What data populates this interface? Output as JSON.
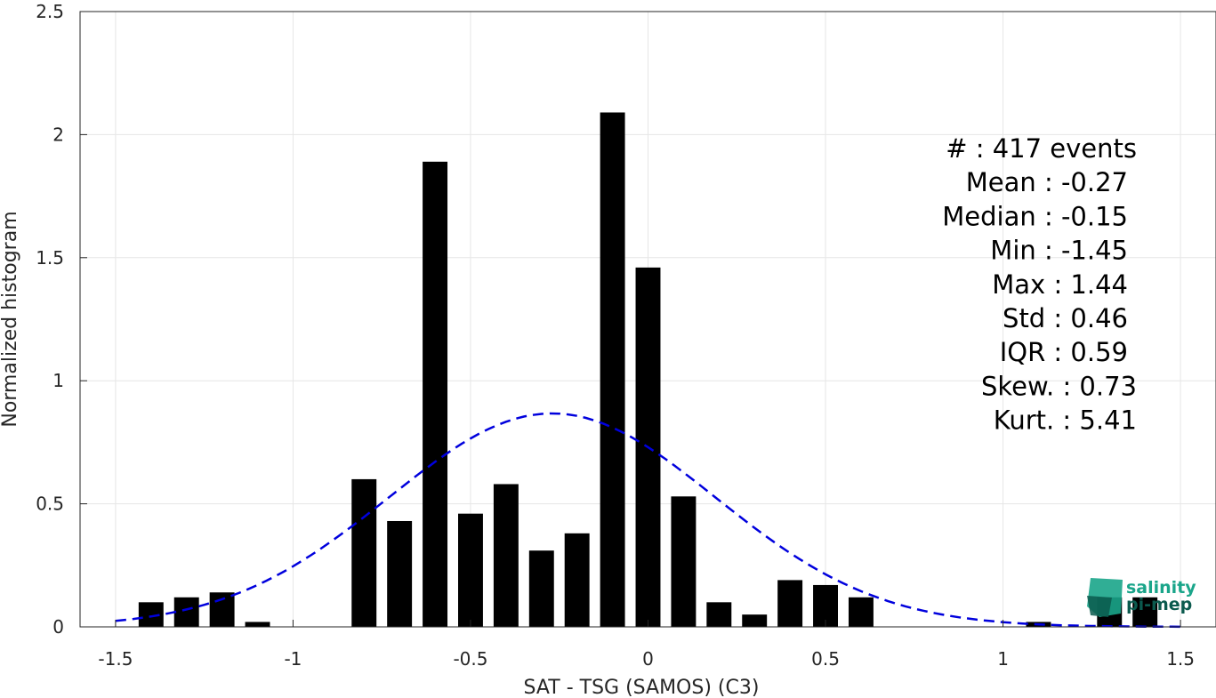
{
  "chart_data": {
    "type": "bar",
    "title": "",
    "xlabel": "SAT - TSG (SAMOS) (C3)",
    "ylabel": "Normalized histogram",
    "xlim": [
      -1.6,
      1.6
    ],
    "ylim": [
      0,
      2.5
    ],
    "grid": true,
    "xticks": [
      -1.5,
      -1,
      -0.5,
      0,
      0.5,
      1,
      1.5
    ],
    "xtick_labels": [
      "-1.5",
      "-1",
      "-0.5",
      "0",
      "0.5",
      "1",
      "1.5"
    ],
    "yticks": [
      0,
      0.5,
      1,
      1.5,
      2,
      2.5
    ],
    "ytick_labels": [
      "0",
      "0.5",
      "1",
      "1.5",
      "2",
      "2.5"
    ],
    "bar_width": 0.07,
    "bars": [
      {
        "x": -1.4,
        "value": 0.1
      },
      {
        "x": -1.3,
        "value": 0.12
      },
      {
        "x": -1.2,
        "value": 0.14
      },
      {
        "x": -1.1,
        "value": 0.02
      },
      {
        "x": -0.8,
        "value": 0.6
      },
      {
        "x": -0.7,
        "value": 0.43
      },
      {
        "x": -0.6,
        "value": 1.89
      },
      {
        "x": -0.5,
        "value": 0.46
      },
      {
        "x": -0.4,
        "value": 0.58
      },
      {
        "x": -0.3,
        "value": 0.31
      },
      {
        "x": -0.2,
        "value": 0.38
      },
      {
        "x": -0.1,
        "value": 2.09
      },
      {
        "x": 0.0,
        "value": 1.46
      },
      {
        "x": 0.1,
        "value": 0.53
      },
      {
        "x": 0.2,
        "value": 0.1
      },
      {
        "x": 0.3,
        "value": 0.05
      },
      {
        "x": 0.4,
        "value": 0.19
      },
      {
        "x": 0.5,
        "value": 0.17
      },
      {
        "x": 0.6,
        "value": 0.12
      },
      {
        "x": 1.1,
        "value": 0.02
      },
      {
        "x": 1.3,
        "value": 0.12
      },
      {
        "x": 1.4,
        "value": 0.12
      }
    ],
    "fit_curve": {
      "style": "dashed",
      "color": "#0000dd",
      "mean": -0.27,
      "std": 0.46,
      "x_range": [
        -1.5,
        1.5
      ]
    },
    "bar_color": "#000000",
    "stats": [
      "#  : 417 events",
      "Mean : -0.27",
      "Median : -0.15",
      "Min : -1.45",
      "Max : 1.44",
      "Std : 0.46",
      "IQR : 0.59",
      "Skew. : 0.73",
      "Kurt. : 5.41"
    ]
  },
  "logo": {
    "line1": "salinity",
    "line2": "pi-mep",
    "color_primary": "#1aa58a",
    "color_dark": "#0b5a4e"
  }
}
